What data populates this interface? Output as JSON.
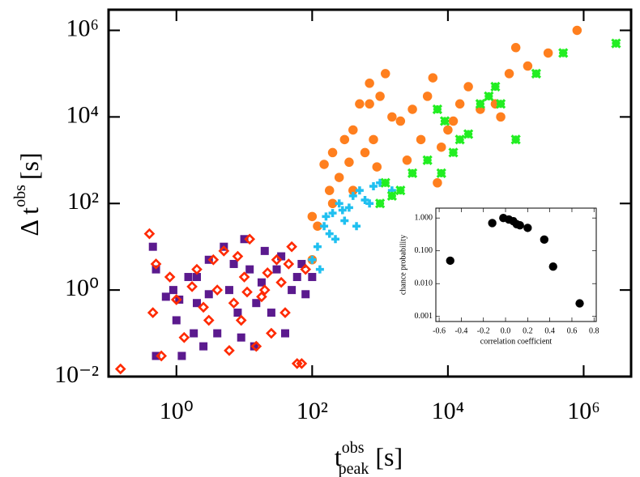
{
  "chart_data": [
    {
      "type": "scatter",
      "xlabel": {
        "text": "t",
        "sub": "peak",
        "sup": "obs",
        "unit": "[s]"
      },
      "ylabel": {
        "text": "Δ t",
        "sup": "obs",
        "unit": "[s]"
      },
      "xlog": true,
      "ylog": true,
      "xlim": [
        0.1,
        5000000
      ],
      "ylim": [
        0.01,
        3000000
      ],
      "xticks": [
        {
          "value": 1,
          "label": "10⁰"
        },
        {
          "value": 100,
          "label": "10²"
        },
        {
          "value": 10000,
          "label": "10⁴"
        },
        {
          "value": 1000000,
          "label": "10⁶"
        }
      ],
      "yticks": [
        {
          "value": 0.01,
          "label": "10⁻²"
        },
        {
          "value": 1,
          "label": "10⁰"
        },
        {
          "value": 100,
          "label": "10²"
        },
        {
          "value": 10000,
          "label": "10⁴"
        },
        {
          "value": 1000000,
          "label": "10⁶"
        }
      ],
      "series": [
        {
          "color": "#5b1a8e",
          "marker": "square",
          "x": [
            1.2,
            0.5,
            0.45,
            0.5,
            1.5,
            2,
            3,
            1,
            0.9,
            5,
            10,
            20,
            30,
            50,
            80,
            60,
            15,
            8,
            4,
            2.5,
            6,
            12,
            25,
            40,
            18,
            7,
            3,
            1.8,
            9,
            35,
            70,
            2,
            0.7,
            1.1,
            14,
            100
          ],
          "y": [
            0.03,
            0.03,
            10,
            3,
            2,
            0.5,
            5,
            0.2,
            1,
            10,
            15,
            8,
            3,
            1,
            0.8,
            2,
            0.5,
            0.3,
            0.1,
            0.05,
            1,
            3,
            0.3,
            0.1,
            1.5,
            4,
            0.8,
            0.1,
            0.08,
            6,
            4,
            2,
            0.7,
            0.6,
            0.05,
            2
          ]
        },
        {
          "color": "#ff2a00",
          "marker": "diamond",
          "x": [
            0.15,
            0.4,
            0.5,
            0.45,
            0.6,
            0.8,
            1,
            1.3,
            2,
            3,
            4,
            5,
            7,
            10,
            15,
            20,
            30,
            40,
            60,
            70,
            80,
            50,
            12,
            25,
            6,
            8,
            35,
            18,
            2.5,
            9,
            45,
            3.5,
            1.7,
            22,
            11
          ],
          "y": [
            0.015,
            20,
            4,
            0.3,
            0.03,
            2,
            0.6,
            0.08,
            3,
            0.2,
            1,
            8,
            0.5,
            2,
            0.05,
            1,
            5,
            0.3,
            0.02,
            0.02,
            3,
            10,
            15,
            0.1,
            0.04,
            6,
            1.5,
            0.7,
            0.4,
            0.2,
            4,
            5,
            1.2,
            2.5,
            0.9
          ]
        },
        {
          "color": "#ff7f1e",
          "marker": "circle",
          "x": [
            100,
            150,
            200,
            300,
            400,
            500,
            700,
            1000,
            1200,
            2000,
            3000,
            5000,
            6000,
            10000,
            15000,
            20000,
            50000,
            80000,
            100000,
            150000,
            300000,
            800000,
            1500,
            800,
            250,
            350,
            600,
            900,
            180,
            120,
            400,
            2500,
            4000,
            8000,
            12000,
            30000,
            60000,
            100,
            200,
            700,
            7000
          ],
          "y": [
            50,
            800,
            1500,
            3000,
            5000,
            20000,
            60000,
            30000,
            100000,
            8000,
            15000,
            30000,
            80000,
            5000,
            20000,
            50000,
            20000,
            100000,
            400000,
            150000,
            300000,
            1000000,
            10000,
            3000,
            400,
            900,
            1500,
            700,
            200,
            30,
            200,
            1000,
            3000,
            2000,
            8000,
            15000,
            10000,
            5,
            100,
            20000,
            300
          ]
        },
        {
          "color": "#20c0f0",
          "marker": "plus",
          "x": [
            100,
            120,
            150,
            180,
            200,
            250,
            300,
            350,
            400,
            500,
            600,
            800,
            1000,
            1500,
            130,
            160,
            220,
            280,
            450,
            700
          ],
          "y": [
            5,
            10,
            30,
            20,
            60,
            100,
            40,
            80,
            150,
            200,
            120,
            250,
            300,
            200,
            3,
            50,
            15,
            70,
            30,
            100
          ]
        },
        {
          "color": "#22ee22",
          "marker": "asterisk",
          "x": [
            1000,
            1200,
            1500,
            2000,
            3000,
            5000,
            7000,
            8000,
            12000,
            15000,
            20000,
            30000,
            50000,
            60000,
            100000,
            200000,
            500000,
            3000000,
            9000,
            40000
          ],
          "y": [
            100,
            300,
            150,
            200,
            500,
            1000,
            15000,
            500,
            1500,
            3000,
            4000,
            20000,
            50000,
            20000,
            3000,
            100000,
            300000,
            500000,
            8000,
            30000
          ]
        }
      ]
    },
    {
      "type": "scatter",
      "xlabel": "correlation coefficient",
      "ylabel": "chance probability",
      "xlog": false,
      "ylog": true,
      "xlim": [
        -0.63,
        0.82
      ],
      "ylim": [
        0.0007,
        2
      ],
      "xticks": [
        -0.6,
        -0.4,
        -0.2,
        {
          "value": 0,
          "label": "0.0"
        },
        0.2,
        0.4,
        0.6,
        0.8
      ],
      "yticks": [
        {
          "value": 0.001,
          "label": "0.001"
        },
        {
          "value": 0.01,
          "label": "0.010"
        },
        {
          "value": 0.1,
          "label": "0.100"
        },
        {
          "value": 1,
          "label": "1.000"
        }
      ],
      "series": [
        {
          "color": "#000000",
          "marker": "circle",
          "x": [
            -0.5,
            -0.12,
            -0.02,
            0.03,
            0.07,
            0.1,
            0.13,
            0.2,
            0.35,
            0.43,
            0.67
          ],
          "y": [
            0.05,
            0.7,
            1.0,
            0.9,
            0.8,
            0.65,
            0.6,
            0.5,
            0.22,
            0.033,
            0.0025
          ]
        }
      ]
    }
  ]
}
